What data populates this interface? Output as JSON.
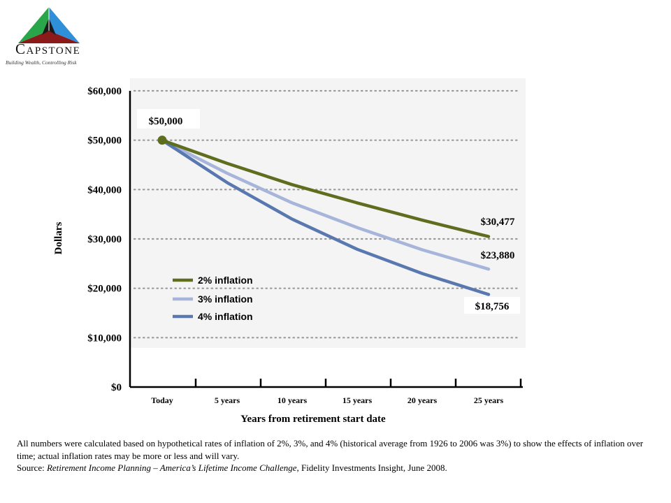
{
  "brand": {
    "initial": "C",
    "rest": "APSTONE",
    "tagline": "Building Wealth, Controlling Risk",
    "logo_colors": {
      "left": "#2aa64a",
      "right": "#2f8fd8",
      "bottom": "#8b1a1a",
      "center": "#1a1a1a"
    }
  },
  "chart_data": {
    "type": "line",
    "x": [
      "Today",
      "5 years",
      "10 years",
      "15 years",
      "20 years",
      "25 years"
    ],
    "xlabel": "Years from retirement start date",
    "ylabel": "Dollars",
    "ylim": [
      0,
      60000
    ],
    "yticks": [
      "$0",
      "$10,000",
      "$20,000",
      "$30,000",
      "$40,000",
      "$50,000",
      "$60,000"
    ],
    "grid": true,
    "series": [
      {
        "name": "2% inflation",
        "color": "#5f6d1f",
        "values": [
          50000,
          45300,
          41000,
          37300,
          33800,
          30477
        ]
      },
      {
        "name": "3% inflation",
        "color": "#a7b5da",
        "values": [
          50000,
          43300,
          37300,
          32300,
          27800,
          23880
        ]
      },
      {
        "name": "4% inflation",
        "color": "#5a78b0",
        "values": [
          50000,
          41400,
          34000,
          27900,
          23000,
          18756
        ]
      }
    ],
    "annotations": {
      "start": "$50,000",
      "end_labels": [
        "$30,477",
        "$23,880",
        "$18,756"
      ]
    },
    "legend_position": "lower-left inside plot"
  },
  "footnote": {
    "line1": "All numbers were calculated based on hypothetical rates of inflation of 2%, 3%, and 4% (historical average from 1926 to 2006 was 3%) to show the effects of inflation over time; actual inflation rates may be more or less and will vary.",
    "source_prefix": "Source: ",
    "source_title": "Retirement Income Planning – America’s Lifetime Income Challenge",
    "source_rest": ", Fidelity Investments Insight, June 2008."
  }
}
